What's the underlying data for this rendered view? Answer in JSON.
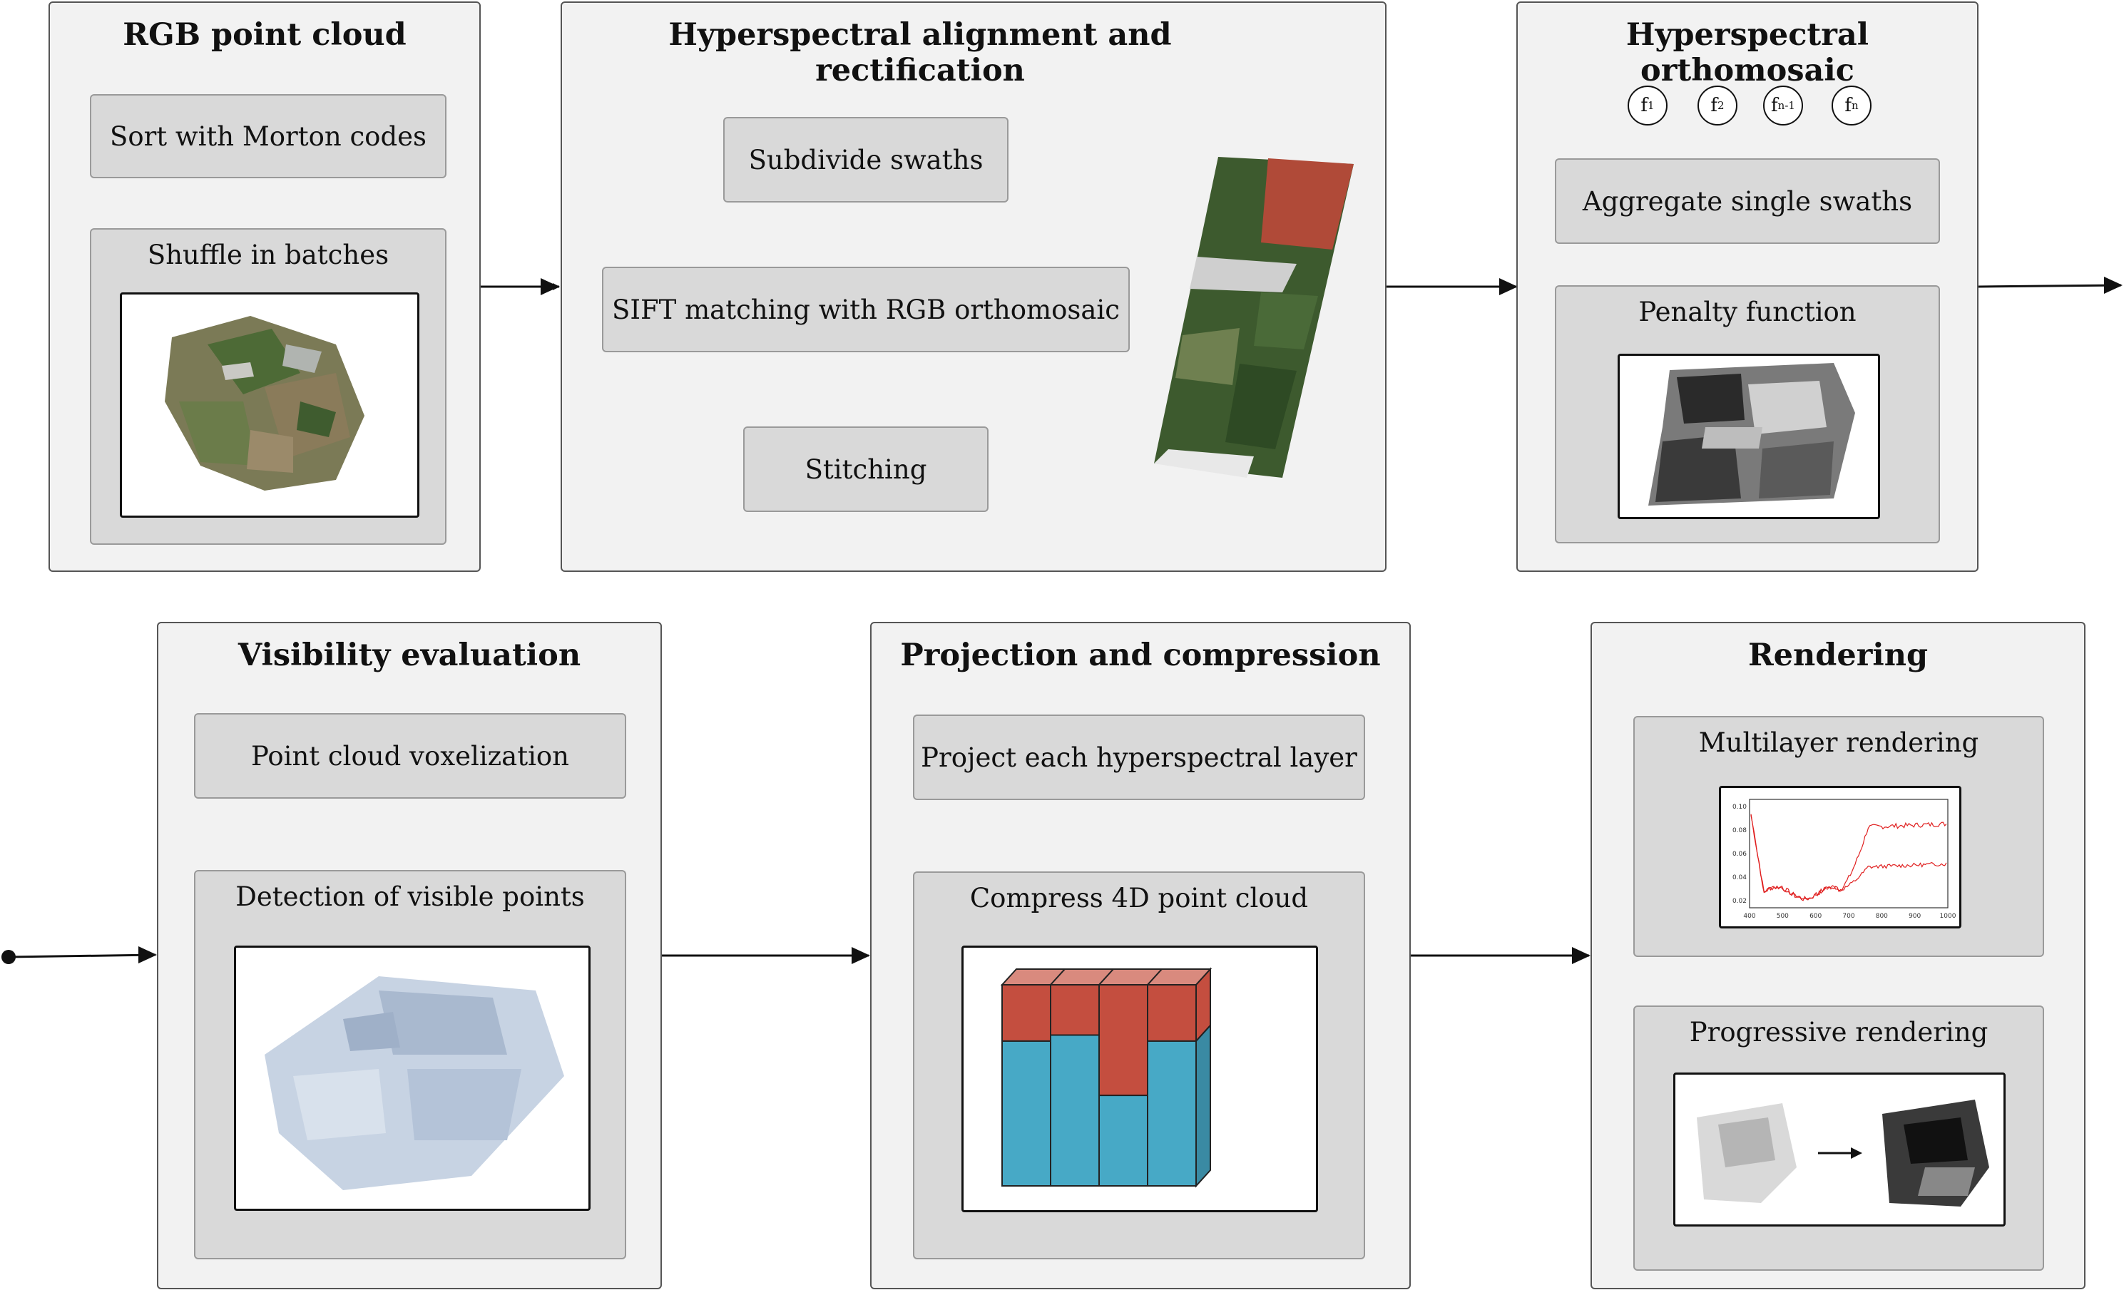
{
  "panels": {
    "rgb": {
      "title": "RGB point cloud",
      "sort": "Sort with Morton codes",
      "shuffle": "Shuffle in batches"
    },
    "align": {
      "title": "Hyperspectral alignment and rectification",
      "subdivide": "Subdivide swaths",
      "sift": "SIFT matching with RGB orthomosaic",
      "stitch": "Stitching"
    },
    "ortho": {
      "title": "Hyperspectral orthomosaic",
      "nodes": [
        {
          "base": "f",
          "sub": "1"
        },
        {
          "base": "f",
          "sub": "2"
        },
        {
          "base": "f",
          "sub": "n-1"
        },
        {
          "base": "f",
          "sub": "n"
        }
      ],
      "aggregate": "Aggregate single swaths",
      "penalty": "Penalty function"
    },
    "visibility": {
      "title": "Visibility evaluation",
      "voxel": "Point cloud voxelization",
      "detect": "Detection of visible points"
    },
    "projection": {
      "title": "Projection and compression",
      "project": "Project each hyperspectral layer",
      "compress": "Compress 4D point cloud"
    },
    "rendering": {
      "title": "Rendering",
      "multi": "Multilayer rendering",
      "progressive": "Progressive rendering"
    }
  },
  "spectral_plot": {
    "x_ticks": [
      "400",
      "500",
      "600",
      "700",
      "800",
      "900",
      "1000"
    ],
    "y_ticks": [
      "0.10",
      "0.08",
      "0.06",
      "0.04",
      "0.02"
    ],
    "line_color": "#e02020"
  },
  "compression_bars": {
    "top_color": "#c44e3f",
    "bottom_color": "#47a9c6",
    "top_fractions": [
      0.28,
      0.25,
      0.55,
      0.28
    ]
  }
}
